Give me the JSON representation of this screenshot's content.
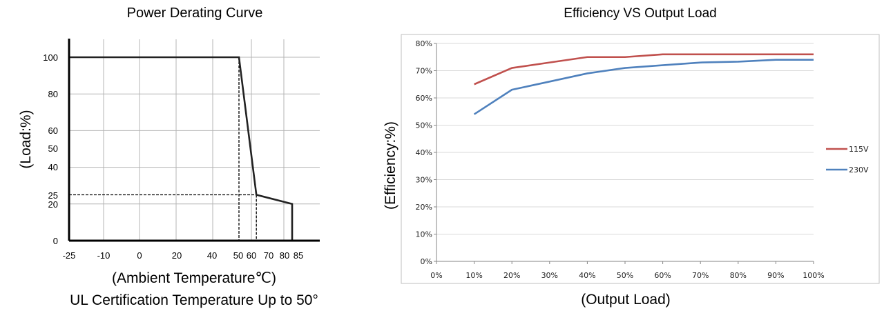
{
  "chart_data": [
    {
      "type": "line",
      "title": "Power Derating Curve",
      "xlabel": "(Ambient Temperature℃)",
      "subtitle": "UL Certification Temperature Up to 50°",
      "ylabel": "(Load:%)",
      "x_ticks": [
        "-25",
        "-10",
        "0",
        "20",
        "40",
        "50",
        "60",
        "70",
        "80",
        "85"
      ],
      "y_ticks": [
        "0",
        "20",
        "25",
        "40",
        "50",
        "60",
        "80",
        "100"
      ],
      "xlim": [
        -25,
        95
      ],
      "ylim": [
        0,
        110
      ],
      "grid": true,
      "series": [
        {
          "x": [
            -25,
            50,
            63,
            83,
            83
          ],
          "y": [
            100,
            100,
            25,
            20,
            0
          ]
        }
      ],
      "reference_lines": [
        {
          "points": [
            [
              50,
              100
            ],
            [
              50,
              0
            ]
          ]
        },
        {
          "points": [
            [
              -25,
              25
            ],
            [
              63,
              25
            ]
          ]
        },
        {
          "points": [
            [
              63,
              25
            ],
            [
              63,
              0
            ]
          ]
        }
      ]
    },
    {
      "type": "line",
      "title": "Efficiency VS Output Load",
      "xlabel": "(Output Load)",
      "ylabel": "(Efficiency:%)",
      "categories": [
        "0%",
        "10%",
        "20%",
        "30%",
        "40%",
        "50%",
        "60%",
        "70%",
        "80%",
        "90%",
        "100%"
      ],
      "y_ticks": [
        "0%",
        "10%",
        "20%",
        "30%",
        "40%",
        "50%",
        "60%",
        "70%",
        "80%"
      ],
      "ylim": [
        0,
        80
      ],
      "grid": true,
      "legend_position": "right",
      "series": [
        {
          "name": "115V",
          "color": "#c0504d",
          "x": [
            10,
            20,
            30,
            40,
            50,
            60,
            70,
            80,
            90,
            100
          ],
          "y": [
            65,
            71,
            73,
            75,
            75,
            76,
            76,
            76,
            76,
            76
          ]
        },
        {
          "name": "230V",
          "color": "#4f81bd",
          "x": [
            10,
            20,
            30,
            40,
            50,
            60,
            70,
            80,
            90,
            100
          ],
          "y": [
            54,
            63,
            66,
            69,
            71,
            72,
            73,
            73.3,
            74,
            74
          ]
        }
      ]
    }
  ]
}
